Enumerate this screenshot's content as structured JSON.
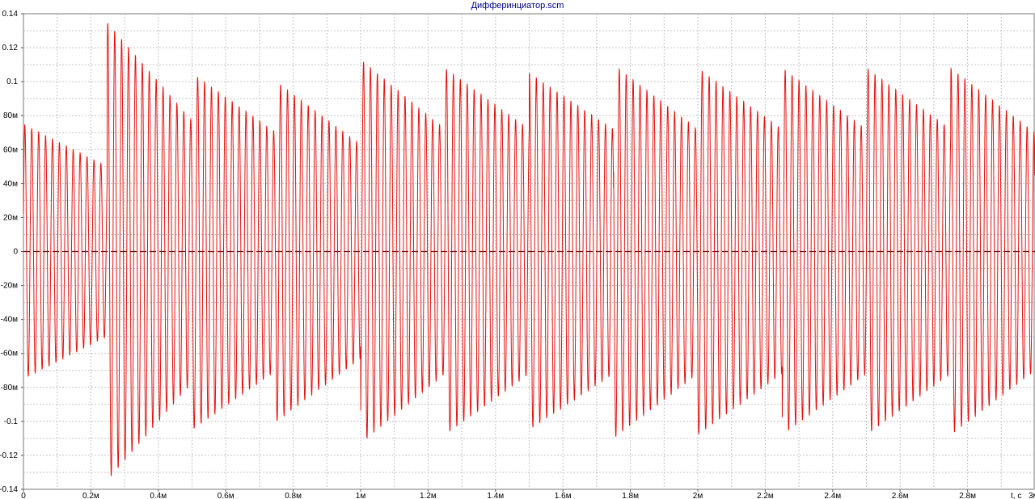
{
  "window": {
    "title": "Дифферинциатор.scm"
  },
  "chart_data": {
    "type": "line",
    "x_unit_label": "t, c",
    "xlim": [
      0,
      0.003
    ],
    "ylim": [
      -0.14,
      0.14
    ],
    "grid": true,
    "x_ticks": [
      {
        "value": 0,
        "label": "0"
      },
      {
        "value": 0.0002,
        "label": "0.2м"
      },
      {
        "value": 0.0004,
        "label": "0.4м"
      },
      {
        "value": 0.0006,
        "label": "0.6м"
      },
      {
        "value": 0.0008,
        "label": "0.8м"
      },
      {
        "value": 0.001,
        "label": "1м"
      },
      {
        "value": 0.0012,
        "label": "1.2м"
      },
      {
        "value": 0.0014,
        "label": "1.4м"
      },
      {
        "value": 0.0016,
        "label": "1.6м"
      },
      {
        "value": 0.0018,
        "label": "1.8м"
      },
      {
        "value": 0.002,
        "label": "2м"
      },
      {
        "value": 0.0022,
        "label": "2.2м"
      },
      {
        "value": 0.0024,
        "label": "2.4м"
      },
      {
        "value": 0.0026,
        "label": "2.6м"
      },
      {
        "value": 0.0028,
        "label": "2.8м"
      }
    ],
    "x_end_label": "3м",
    "y_ticks": [
      {
        "value": 0.14,
        "label": "0.14"
      },
      {
        "value": 0.12,
        "label": "0.12"
      },
      {
        "value": 0.1,
        "label": "0.1"
      },
      {
        "value": 0.08,
        "label": "80м"
      },
      {
        "value": 0.06,
        "label": "60м"
      },
      {
        "value": 0.04,
        "label": "40м"
      },
      {
        "value": 0.02,
        "label": "20м"
      },
      {
        "value": 0,
        "label": "0"
      },
      {
        "value": -0.02,
        "label": "-20м"
      },
      {
        "value": -0.04,
        "label": "-40м"
      },
      {
        "value": -0.06,
        "label": "-60м"
      },
      {
        "value": -0.08,
        "label": "-80м"
      },
      {
        "value": -0.1,
        "label": "-0.1"
      },
      {
        "value": -0.12,
        "label": "-0.12"
      },
      {
        "value": -0.14,
        "label": "-0.14"
      }
    ],
    "series": [
      {
        "color": "#e8100f",
        "carrier_period": 2.05e-05,
        "envelope_segments": [
          {
            "t0": 0.0,
            "t1": 0.000248,
            "a0": 0.075,
            "a1": 0.05
          },
          {
            "t0": 0.000248,
            "t1": 0.0005,
            "a0": 0.135,
            "a1": 0.077
          },
          {
            "t0": 0.0005,
            "t1": 0.00075,
            "a0": 0.105,
            "a1": 0.07
          },
          {
            "t0": 0.00075,
            "t1": 0.001,
            "a0": 0.1,
            "a1": 0.063
          },
          {
            "t0": 0.001,
            "t1": 0.00125,
            "a0": 0.113,
            "a1": 0.072
          },
          {
            "t0": 0.00125,
            "t1": 0.0015,
            "a0": 0.108,
            "a1": 0.072
          },
          {
            "t0": 0.0015,
            "t1": 0.00175,
            "a0": 0.105,
            "a1": 0.072
          },
          {
            "t0": 0.00175,
            "t1": 0.002,
            "a0": 0.11,
            "a1": 0.072
          },
          {
            "t0": 0.002,
            "t1": 0.00225,
            "a0": 0.108,
            "a1": 0.072
          },
          {
            "t0": 0.00225,
            "t1": 0.0025,
            "a0": 0.108,
            "a1": 0.072
          },
          {
            "t0": 0.0025,
            "t1": 0.00275,
            "a0": 0.108,
            "a1": 0.072
          },
          {
            "t0": 0.00275,
            "t1": 0.003,
            "a0": 0.108,
            "a1": 0.07
          }
        ]
      }
    ],
    "zero_line_color": "#7a1010"
  }
}
